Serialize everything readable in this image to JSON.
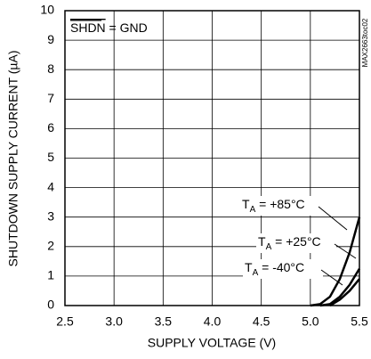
{
  "chart_data": {
    "type": "line",
    "x_label": "SUPPLY VOLTAGE (V)",
    "y_label": "SHUTDOWN SUPPLY CURRENT (µA)",
    "annotation": "SHDN = GND",
    "figure_id": "MAX2663toc02",
    "x": [
      5.0,
      5.1,
      5.2,
      5.3,
      5.4,
      5.5
    ],
    "series": [
      {
        "name": "TA = +85°C",
        "color": "#000000",
        "values": [
          0,
          0.05,
          0.3,
          0.9,
          1.8,
          3.0
        ]
      },
      {
        "name": "TA = +25°C",
        "color": "#000000",
        "values": [
          null,
          0,
          0.05,
          0.3,
          0.7,
          1.25
        ]
      },
      {
        "name": "TA = -40°C",
        "color": "#000000",
        "values": [
          null,
          null,
          0,
          0.2,
          0.5,
          0.9
        ]
      }
    ],
    "xlim": [
      2.5,
      5.5
    ],
    "xticks": [
      2.5,
      {
        "value": 3,
        "label": "3.0"
      },
      3.5,
      {
        "value": 4,
        "label": "4.0"
      },
      4.5,
      {
        "value": 5,
        "label": "5.0"
      },
      5.5
    ],
    "ylim": [
      0,
      10
    ],
    "yticks": [
      0,
      1,
      2,
      3,
      4,
      5,
      6,
      7,
      8,
      9,
      10
    ],
    "grid": true
  }
}
